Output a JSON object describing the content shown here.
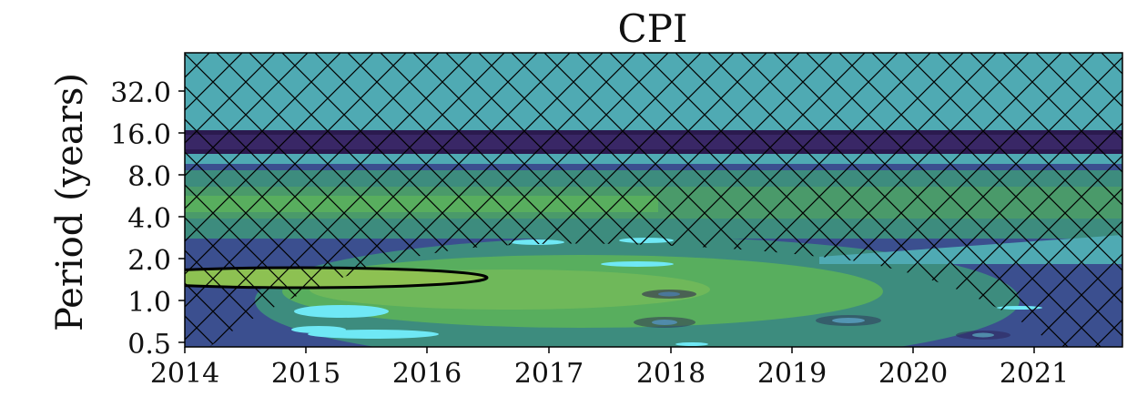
{
  "chart_data": {
    "type": "heatmap",
    "title": "CPI",
    "ylabel": "Period (years)",
    "xlabel": "",
    "x_ticks": [
      "2014",
      "2015",
      "2016",
      "2017",
      "2018",
      "2019",
      "2020",
      "2021"
    ],
    "y_ticks": [
      "0.5",
      "1.0",
      "2.0",
      "4.0",
      "8.0",
      "16.0",
      "32.0"
    ],
    "y_scale": "log2",
    "xlim": [
      2014,
      2021.75
    ],
    "ylim_period_years": [
      0.4,
      64
    ],
    "description_of_fill": "wavelet power spectrum contour fill (viridis-like palette)",
    "cone_of_influence": "cross-hatched region outside the cone",
    "significance_contour": {
      "center_period_years": 1.4,
      "x_range": [
        2014,
        2016.5
      ]
    },
    "colors": {
      "high": "#6fe8f5",
      "mid_high": "#4faab3",
      "mid": "#3d8c7e",
      "green": "#58ae5e",
      "lime": "#8dc152",
      "low": "#3b4f8f",
      "lowest": "#2b1a4f"
    }
  }
}
